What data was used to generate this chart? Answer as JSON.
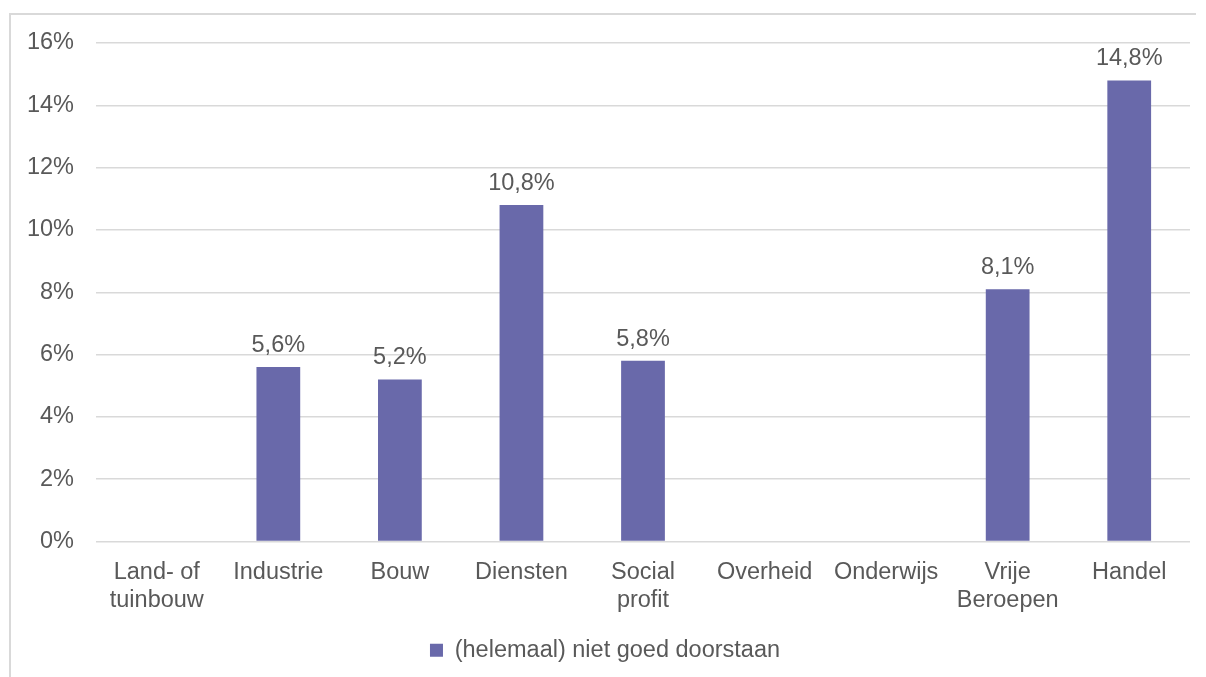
{
  "chart_data": {
    "type": "bar",
    "categories": [
      "Land- of tuinbouw",
      "Industrie",
      "Bouw",
      "Diensten",
      "Social profit",
      "Overheid",
      "Onderwijs",
      "Vrije Beroepen",
      "Handel"
    ],
    "series": [
      {
        "name": "(helemaal) niet goed doorstaan",
        "color": "#6969aa",
        "values": [
          null,
          5.6,
          5.2,
          10.8,
          5.8,
          null,
          null,
          8.1,
          14.8
        ],
        "value_labels": [
          null,
          "5,6%",
          "5,2%",
          "10,8%",
          "5,8%",
          null,
          null,
          "8,1%",
          "14,8%"
        ]
      }
    ],
    "ylim": [
      0,
      16
    ],
    "yticks": [
      {
        "value": 0,
        "label": "0%"
      },
      {
        "value": 2,
        "label": "2%"
      },
      {
        "value": 4,
        "label": "4%"
      },
      {
        "value": 6,
        "label": "6%"
      },
      {
        "value": 8,
        "label": "8%"
      },
      {
        "value": 10,
        "label": "10%"
      },
      {
        "value": 12,
        "label": "12%"
      },
      {
        "value": 14,
        "label": "14%"
      },
      {
        "value": 16,
        "label": "16%"
      }
    ],
    "grid": "y",
    "legend": "bottom"
  }
}
